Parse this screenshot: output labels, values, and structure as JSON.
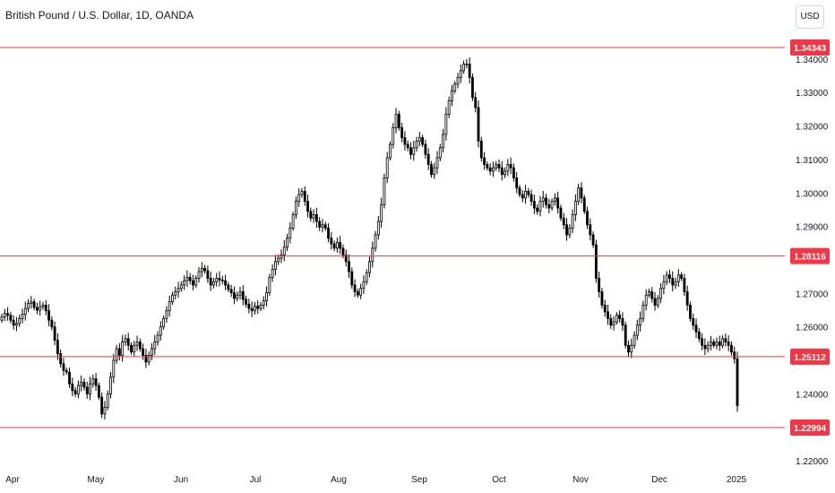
{
  "header": {
    "title": "British Pound / U.S. Dollar, 1D, OANDA",
    "currency_button": "USD"
  },
  "colors": {
    "up": "#ffffff",
    "down": "#000000",
    "wick": "#000000",
    "level_line": "#f23645",
    "level_label_bg": "#f23645",
    "axis_text": "#131722"
  },
  "chart_data": {
    "type": "candlestick",
    "symbol": "British Pound / U.S. Dollar",
    "interval": "1D",
    "source": "OANDA",
    "y_axis_side": "right",
    "ylim": [
      1.215,
      1.3505
    ],
    "y_ticks": [
      "1.34000",
      "1.33000",
      "1.32000",
      "1.31000",
      "1.30000",
      "1.29000",
      "1.27000",
      "1.26000",
      "1.24000",
      "1.22000"
    ],
    "x_ticks": [
      "Apr",
      "May",
      "Jun",
      "Jul",
      "Aug",
      "Sep",
      "Oct",
      "Nov",
      "Dec",
      "2025"
    ],
    "horizontal_levels": [
      "1.34343",
      "1.28116",
      "1.25112",
      "1.22994"
    ],
    "closes": [
      1.263,
      1.264,
      1.2635,
      1.262,
      1.2605,
      1.261,
      1.2625,
      1.2638,
      1.2655,
      1.267,
      1.2675,
      1.2658,
      1.265,
      1.266,
      1.2665,
      1.2648,
      1.262,
      1.26,
      1.256,
      1.252,
      1.249,
      1.247,
      1.2465,
      1.243,
      1.241,
      1.24,
      1.2425,
      1.2435,
      1.242,
      1.24,
      1.243,
      1.2445,
      1.2425,
      1.239,
      1.234,
      1.236,
      1.24,
      1.245,
      1.25,
      1.2535,
      1.2515,
      1.2555,
      1.2565,
      1.2545,
      1.2525,
      1.2545,
      1.2555,
      1.2535,
      1.2515,
      1.2495,
      1.2515,
      1.2535,
      1.2555,
      1.2575,
      1.26,
      1.2625,
      1.2648,
      1.2675,
      1.2695,
      1.2705,
      1.2715,
      1.2725,
      1.2738,
      1.2748,
      1.2738,
      1.2725,
      1.2745,
      1.2765,
      1.2775,
      1.2768,
      1.2745,
      1.2725,
      1.2735,
      1.2745,
      1.274,
      1.2738,
      1.2725,
      1.2712,
      1.2702,
      1.2685,
      1.2695,
      1.2705,
      1.2682,
      1.2668,
      1.2655,
      1.2648,
      1.2662,
      1.2655,
      1.2665,
      1.2678,
      1.2702,
      1.2748,
      1.2772,
      1.2795,
      1.2805,
      1.2815,
      1.2838,
      1.2865,
      1.2895,
      1.2935,
      1.2975,
      1.2995,
      1.3005,
      1.2975,
      1.2945,
      1.2925,
      1.2935,
      1.2915,
      1.2898,
      1.2905,
      1.2895,
      1.2865,
      1.2848,
      1.2835,
      1.2852,
      1.2835,
      1.2815,
      1.2795,
      1.2765,
      1.2725,
      1.2705,
      1.2695,
      1.2715,
      1.2735,
      1.2762,
      1.2795,
      1.2835,
      1.2875,
      1.2915,
      1.2965,
      1.3045,
      1.3105,
      1.3145,
      1.3195,
      1.3235,
      1.3195,
      1.3165,
      1.3145,
      1.3135,
      1.3115,
      1.3135,
      1.3155,
      1.3165,
      1.3145,
      1.3115,
      1.3085,
      1.3055,
      1.3075,
      1.3105,
      1.3135,
      1.3175,
      1.3235,
      1.3275,
      1.3305,
      1.3325,
      1.3345,
      1.3365,
      1.3385,
      1.3385,
      1.3345,
      1.3285,
      1.3255,
      1.3155,
      1.3105,
      1.3085,
      1.3075,
      1.3065,
      1.3075,
      1.3085,
      1.3075,
      1.3055,
      1.3065,
      1.3085,
      1.3075,
      1.3045,
      1.3015,
      1.2995,
      1.2985,
      1.3005,
      1.2995,
      1.2975,
      1.2955,
      1.2945,
      1.2975,
      1.2985,
      1.2965,
      1.2955,
      1.2975,
      1.2985,
      1.2955,
      1.2925,
      1.2905,
      1.2875,
      1.2895,
      1.2935,
      1.2975,
      1.3015,
      1.2985,
      1.2945,
      1.2905,
      1.2875,
      1.2845,
      1.2745,
      1.2705,
      1.2665,
      1.2645,
      1.2625,
      1.2605,
      1.2615,
      1.2635,
      1.2625,
      1.2605,
      1.2545,
      1.2525,
      1.2545,
      1.2575,
      1.2605,
      1.2625,
      1.2665,
      1.2695,
      1.2705,
      1.2685,
      1.2665,
      1.2685,
      1.2715,
      1.2735,
      1.2755,
      1.2745,
      1.2725,
      1.2735,
      1.2755,
      1.2745,
      1.2705,
      1.2665,
      1.2625,
      1.2605,
      1.2585,
      1.2565,
      1.2545,
      1.2535,
      1.2545,
      1.2555,
      1.2545,
      1.2555,
      1.2545,
      1.2565,
      1.2555,
      1.2545,
      1.2525,
      1.2505,
      1.2365
    ]
  }
}
